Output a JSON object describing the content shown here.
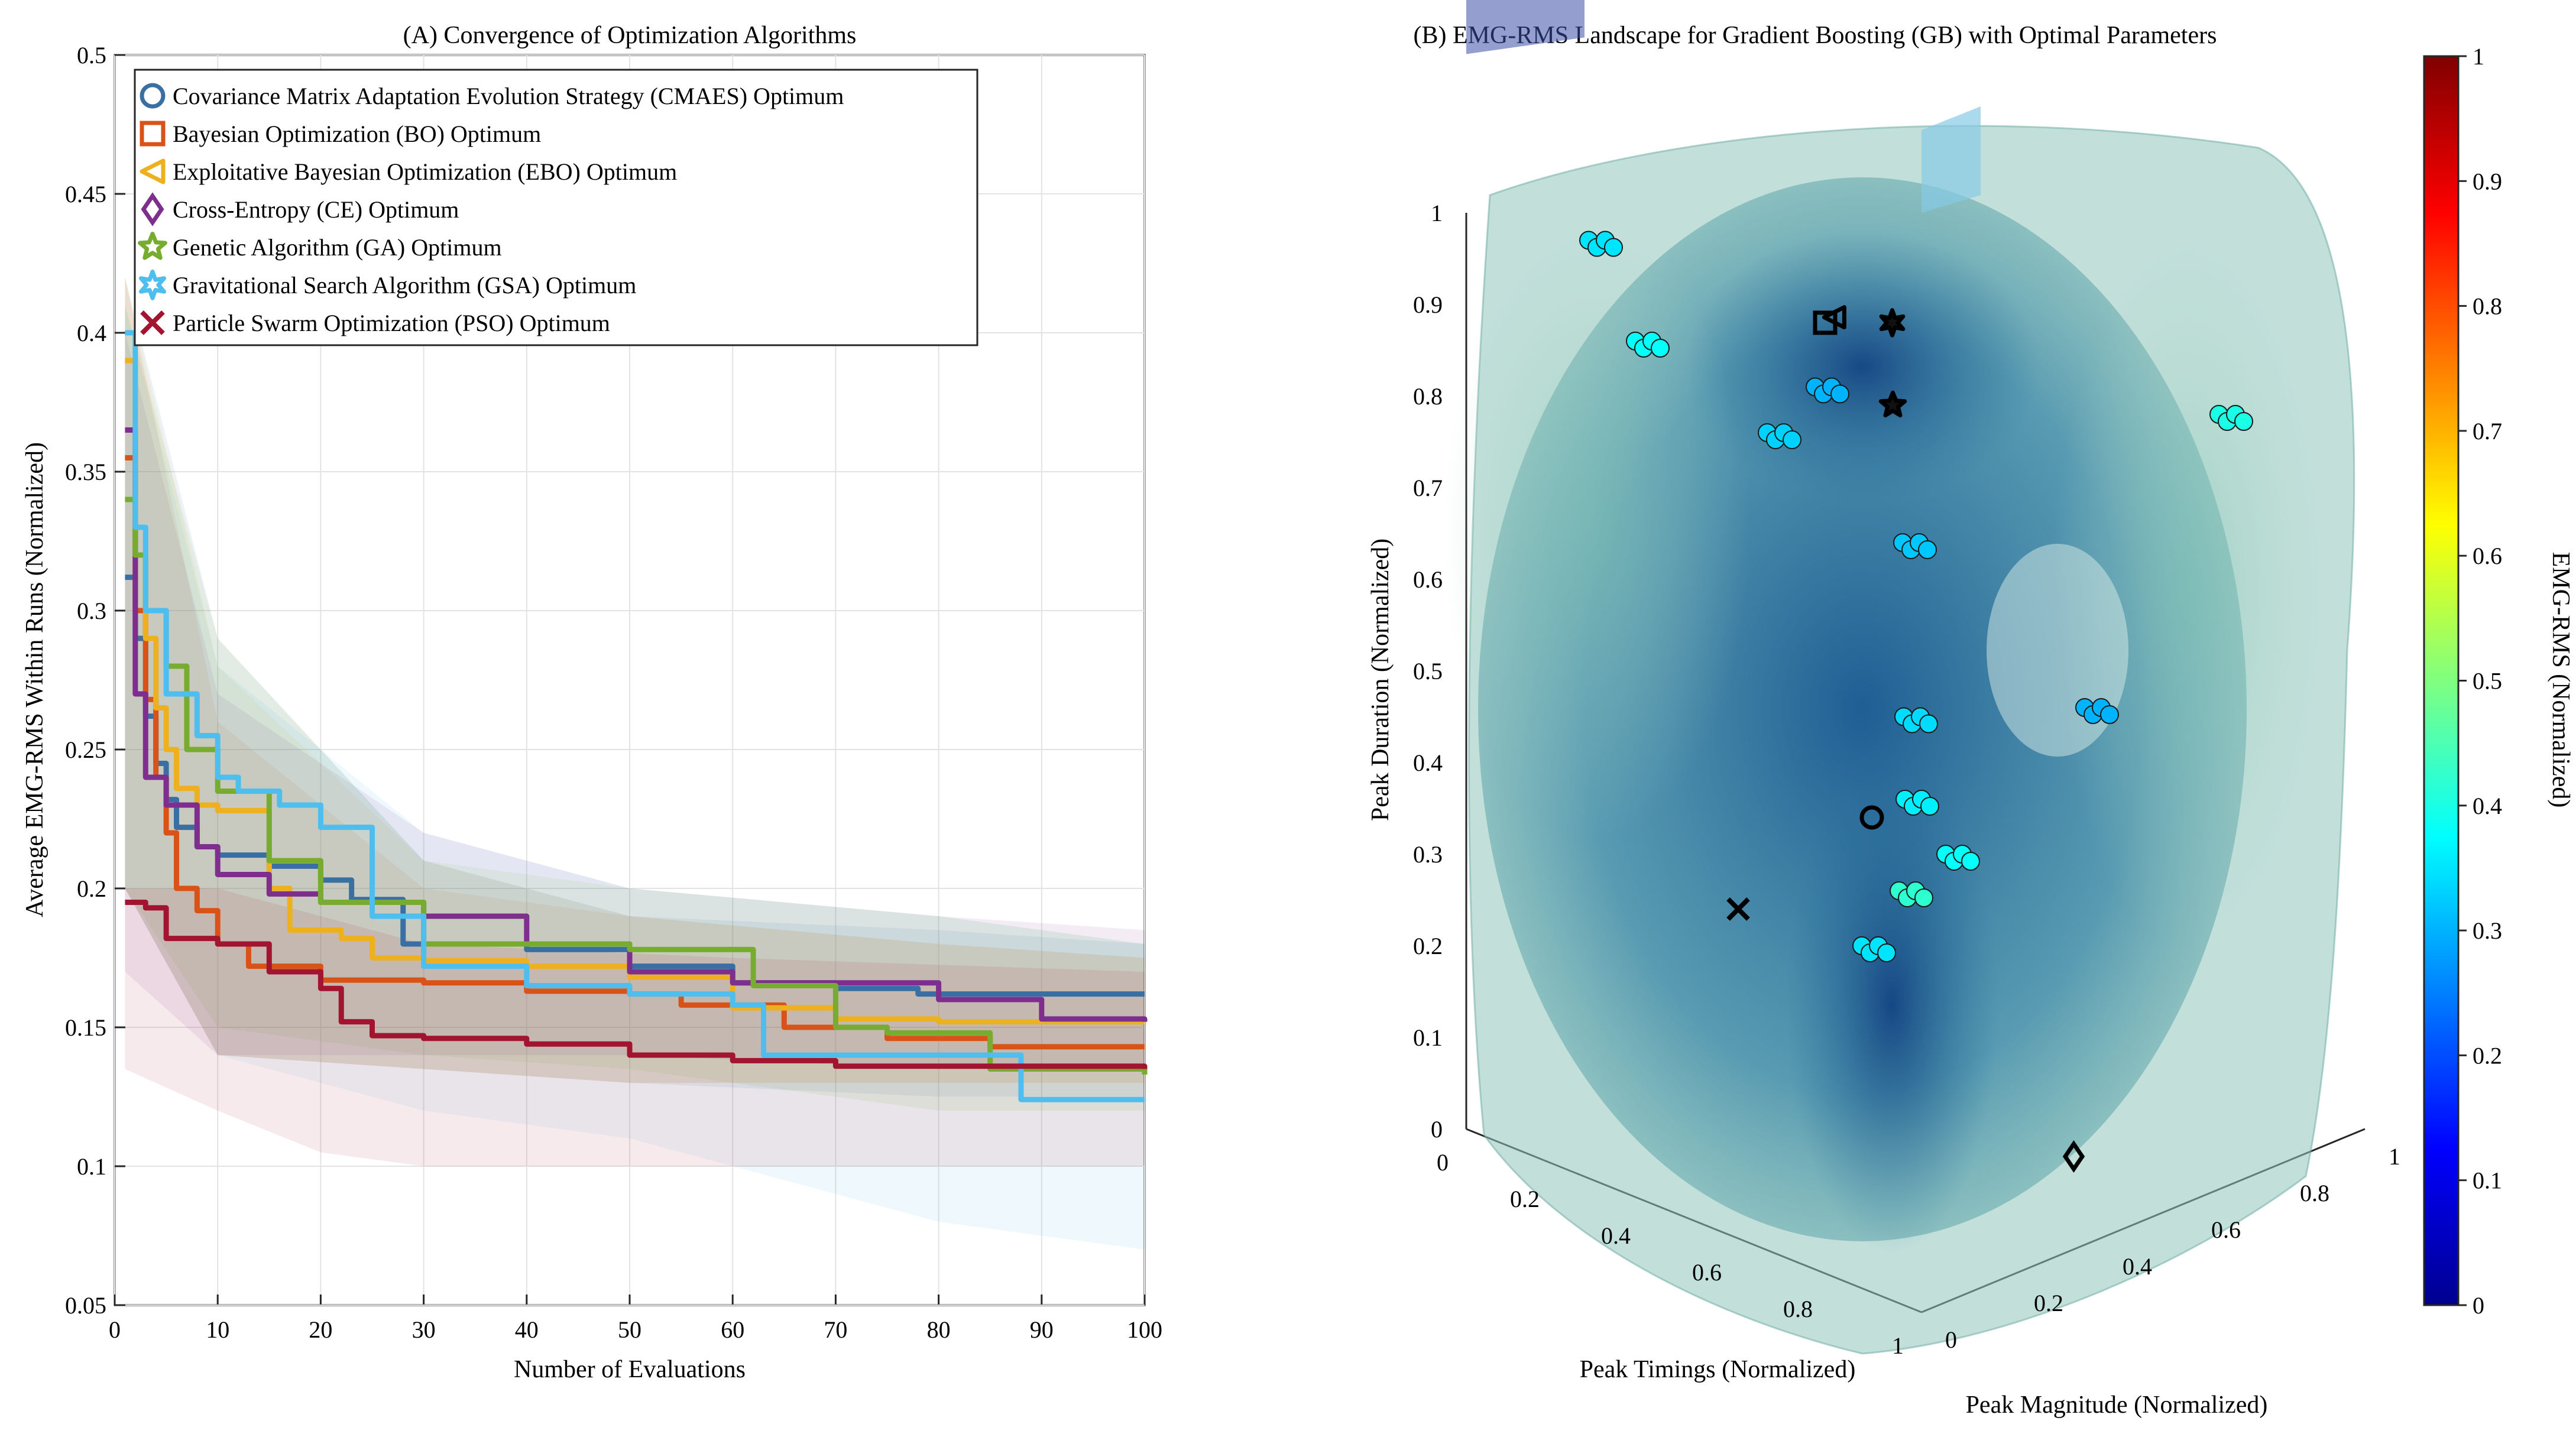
{
  "chart_data": [
    {
      "type": "line",
      "title": "(A) Convergence of Optimization Algorithms",
      "xlabel": "Number of Evaluations",
      "ylabel": "Average EMG-RMS Within Runs (Normalized)",
      "xlim": [
        0,
        100
      ],
      "ylim": [
        0.05,
        0.5
      ],
      "xticks": [
        0,
        10,
        20,
        30,
        40,
        50,
        60,
        70,
        80,
        90,
        100
      ],
      "yticks": [
        0.05,
        0.1,
        0.15,
        0.2,
        0.25,
        0.3,
        0.35,
        0.4,
        0.45,
        0.5
      ],
      "grid": true,
      "legend_position": "top-left",
      "series": [
        {
          "name": "Covariance Matrix Adaptation Evolution Strategy (CMAES) Optimum",
          "marker": "circle",
          "color": "#3a6fa3",
          "points": [
            [
              1,
              0.312
            ],
            [
              2,
              0.29
            ],
            [
              3,
              0.262
            ],
            [
              4,
              0.245
            ],
            [
              5,
              0.232
            ],
            [
              6,
              0.222
            ],
            [
              8,
              0.215
            ],
            [
              10,
              0.212
            ],
            [
              15,
              0.208
            ],
            [
              20,
              0.203
            ],
            [
              23,
              0.196
            ],
            [
              28,
              0.18
            ],
            [
              40,
              0.178
            ],
            [
              50,
              0.172
            ],
            [
              60,
              0.166
            ],
            [
              70,
              0.164
            ],
            [
              78,
              0.162
            ],
            [
              100,
              0.162
            ]
          ],
          "band": [
            [
              1,
              0.42,
              0.2
            ],
            [
              10,
              0.29,
              0.14
            ],
            [
              30,
              0.21,
              0.135
            ],
            [
              50,
              0.19,
              0.13
            ],
            [
              80,
              0.185,
              0.125
            ],
            [
              100,
              0.18,
              0.125
            ]
          ]
        },
        {
          "name": "Bayesian Optimization (BO) Optimum",
          "marker": "square",
          "color": "#d95319",
          "points": [
            [
              1,
              0.355
            ],
            [
              2,
              0.3
            ],
            [
              3,
              0.268
            ],
            [
              4,
              0.24
            ],
            [
              5,
              0.22
            ],
            [
              6,
              0.2
            ],
            [
              8,
              0.192
            ],
            [
              10,
              0.18
            ],
            [
              13,
              0.172
            ],
            [
              20,
              0.167
            ],
            [
              30,
              0.166
            ],
            [
              40,
              0.163
            ],
            [
              50,
              0.162
            ],
            [
              55,
              0.158
            ],
            [
              65,
              0.15
            ],
            [
              75,
              0.146
            ],
            [
              85,
              0.143
            ],
            [
              100,
              0.143
            ]
          ],
          "band": [
            [
              1,
              0.42,
              0.2
            ],
            [
              10,
              0.26,
              0.14
            ],
            [
              30,
              0.2,
              0.135
            ],
            [
              50,
              0.19,
              0.13
            ],
            [
              80,
              0.18,
              0.13
            ],
            [
              100,
              0.175,
              0.13
            ]
          ]
        },
        {
          "name": "Exploitative Bayesian Optimization (EBO) Optimum",
          "marker": "triangle-left",
          "color": "#edb120",
          "points": [
            [
              1,
              0.39
            ],
            [
              2,
              0.32
            ],
            [
              3,
              0.29
            ],
            [
              4,
              0.265
            ],
            [
              5,
              0.25
            ],
            [
              6,
              0.236
            ],
            [
              8,
              0.23
            ],
            [
              10,
              0.228
            ],
            [
              15,
              0.2
            ],
            [
              17,
              0.185
            ],
            [
              22,
              0.182
            ],
            [
              25,
              0.175
            ],
            [
              30,
              0.174
            ],
            [
              40,
              0.172
            ],
            [
              50,
              0.168
            ],
            [
              60,
              0.157
            ],
            [
              70,
              0.153
            ],
            [
              80,
              0.152
            ],
            [
              100,
              0.152
            ]
          ],
          "band": [
            [
              1,
              0.42,
              0.2
            ],
            [
              10,
              0.28,
              0.14
            ],
            [
              30,
              0.21,
              0.135
            ],
            [
              50,
              0.19,
              0.13
            ],
            [
              80,
              0.18,
              0.13
            ],
            [
              100,
              0.175,
              0.13
            ]
          ]
        },
        {
          "name": "Cross-Entropy (CE) Optimum",
          "marker": "diamond",
          "color": "#7e2f8e",
          "points": [
            [
              1,
              0.365
            ],
            [
              2,
              0.27
            ],
            [
              3,
              0.24
            ],
            [
              5,
              0.23
            ],
            [
              8,
              0.215
            ],
            [
              10,
              0.205
            ],
            [
              15,
              0.198
            ],
            [
              20,
              0.195
            ],
            [
              30,
              0.19
            ],
            [
              40,
              0.18
            ],
            [
              50,
              0.17
            ],
            [
              60,
              0.166
            ],
            [
              80,
              0.16
            ],
            [
              90,
              0.153
            ],
            [
              100,
              0.152
            ]
          ],
          "band": [
            [
              1,
              0.4,
              0.17
            ],
            [
              10,
              0.27,
              0.14
            ],
            [
              30,
              0.22,
              0.14
            ],
            [
              50,
              0.2,
              0.14
            ],
            [
              80,
              0.19,
              0.135
            ],
            [
              100,
              0.185,
              0.135
            ]
          ]
        },
        {
          "name": "Genetic Algorithm (GA) Optimum",
          "marker": "star",
          "color": "#77ac30",
          "points": [
            [
              1,
              0.34
            ],
            [
              2,
              0.32
            ],
            [
              3,
              0.3
            ],
            [
              5,
              0.28
            ],
            [
              7,
              0.25
            ],
            [
              10,
              0.235
            ],
            [
              15,
              0.21
            ],
            [
              20,
              0.195
            ],
            [
              30,
              0.18
            ],
            [
              50,
              0.178
            ],
            [
              62,
              0.165
            ],
            [
              70,
              0.15
            ],
            [
              75,
              0.148
            ],
            [
              85,
              0.135
            ],
            [
              100,
              0.133
            ]
          ],
          "band": [
            [
              1,
              0.41,
              0.2
            ],
            [
              10,
              0.29,
              0.15
            ],
            [
              30,
              0.21,
              0.14
            ],
            [
              50,
              0.2,
              0.135
            ],
            [
              80,
              0.19,
              0.12
            ],
            [
              100,
              0.18,
              0.12
            ]
          ]
        },
        {
          "name": "Gravitational Search Algorithm (GSA) Optimum",
          "marker": "hexagram",
          "color": "#4dbeee",
          "points": [
            [
              1,
              0.4
            ],
            [
              2,
              0.33
            ],
            [
              3,
              0.3
            ],
            [
              5,
              0.27
            ],
            [
              8,
              0.255
            ],
            [
              10,
              0.24
            ],
            [
              12,
              0.235
            ],
            [
              16,
              0.23
            ],
            [
              20,
              0.222
            ],
            [
              25,
              0.19
            ],
            [
              30,
              0.172
            ],
            [
              40,
              0.165
            ],
            [
              50,
              0.162
            ],
            [
              60,
              0.158
            ],
            [
              63,
              0.14
            ],
            [
              86,
              0.14
            ],
            [
              88,
              0.124
            ],
            [
              100,
              0.124
            ]
          ],
          "band": [
            [
              1,
              0.41,
              0.2
            ],
            [
              10,
              0.28,
              0.14
            ],
            [
              30,
              0.22,
              0.12
            ],
            [
              50,
              0.2,
              0.11
            ],
            [
              80,
              0.19,
              0.08
            ],
            [
              100,
              0.18,
              0.07
            ]
          ]
        },
        {
          "name": "Particle Swarm Optimization (PSO) Optimum",
          "marker": "cross",
          "color": "#a2142f",
          "points": [
            [
              1,
              0.195
            ],
            [
              3,
              0.193
            ],
            [
              5,
              0.182
            ],
            [
              10,
              0.18
            ],
            [
              15,
              0.17
            ],
            [
              20,
              0.164
            ],
            [
              22,
              0.152
            ],
            [
              25,
              0.147
            ],
            [
              30,
              0.146
            ],
            [
              40,
              0.144
            ],
            [
              50,
              0.14
            ],
            [
              60,
              0.138
            ],
            [
              70,
              0.136
            ],
            [
              100,
              0.135
            ]
          ],
          "band": [
            [
              1,
              0.2,
              0.135
            ],
            [
              10,
              0.2,
              0.12
            ],
            [
              20,
              0.19,
              0.105
            ],
            [
              30,
              0.18,
              0.1
            ],
            [
              60,
              0.175,
              0.1
            ],
            [
              100,
              0.17,
              0.1
            ]
          ]
        }
      ]
    },
    {
      "type": "scatter",
      "title": "(B) EMG-RMS Landscape for Gradient Boosting (GB) with Optimal Parameters",
      "xlabel": "Peak Timings (Normalized)",
      "ylabel": "Peak Magnitude (Normalized)",
      "zlabel": "Peak Duration (Normalized)",
      "colorbar_label": "EMG-RMS (Normalized)",
      "colormap": "jet",
      "clim": [
        0,
        1
      ],
      "colorbar_ticks": [
        "0",
        "0.1",
        "0.2",
        "0.3",
        "0.4",
        "0.5",
        "0.6",
        "0.7",
        "0.8",
        "0.9",
        "1"
      ],
      "xticks": [
        "0",
        "0.2",
        "0.4",
        "0.6",
        "0.8",
        "1"
      ],
      "yticks": [
        "0",
        "0.2",
        "0.4",
        "0.6",
        "0.8",
        "1"
      ],
      "zticks": [
        "0",
        "0.1",
        "0.2",
        "0.3",
        "0.4",
        "0.5",
        "0.6",
        "0.7",
        "0.8",
        "0.9",
        "1"
      ],
      "sample_points": [
        [
          0.1,
          0.2,
          0.95,
          0.35
        ],
        [
          0.3,
          0.1,
          0.9,
          0.38
        ],
        [
          0.5,
          0.3,
          0.85,
          0.3
        ],
        [
          0.2,
          0.5,
          0.7,
          0.33
        ],
        [
          0.4,
          0.6,
          0.6,
          0.32
        ],
        [
          0.6,
          0.4,
          0.4,
          0.36
        ],
        [
          0.7,
          0.2,
          0.3,
          0.35
        ],
        [
          0.3,
          0.8,
          0.2,
          0.38
        ],
        [
          0.8,
          0.6,
          0.5,
          0.3
        ],
        [
          0.9,
          0.8,
          0.8,
          0.4
        ],
        [
          0.1,
          0.9,
          0.1,
          0.42
        ],
        [
          0.5,
          0.5,
          0.45,
          0.34
        ]
      ],
      "optima": [
        {
          "algorithm": "CMAES",
          "marker": "circle",
          "x": 0.55,
          "y": 0.35,
          "z": 0.38
        },
        {
          "algorithm": "BO",
          "marker": "square",
          "x": 0.35,
          "y": 0.45,
          "z": 0.86
        },
        {
          "algorithm": "EBO",
          "marker": "triangle-left",
          "x": 0.37,
          "y": 0.45,
          "z": 0.87
        },
        {
          "algorithm": "CE",
          "marker": "diamond",
          "x": 0.75,
          "y": 0.6,
          "z": 0.0
        },
        {
          "algorithm": "GA",
          "marker": "star",
          "x": 0.45,
          "y": 0.5,
          "z": 0.78
        },
        {
          "algorithm": "GSA",
          "marker": "hexagram",
          "x": 0.4,
          "y": 0.55,
          "z": 0.85
        },
        {
          "algorithm": "PSO",
          "marker": "cross",
          "x": 0.5,
          "y": 0.1,
          "z": 0.32
        }
      ]
    }
  ]
}
